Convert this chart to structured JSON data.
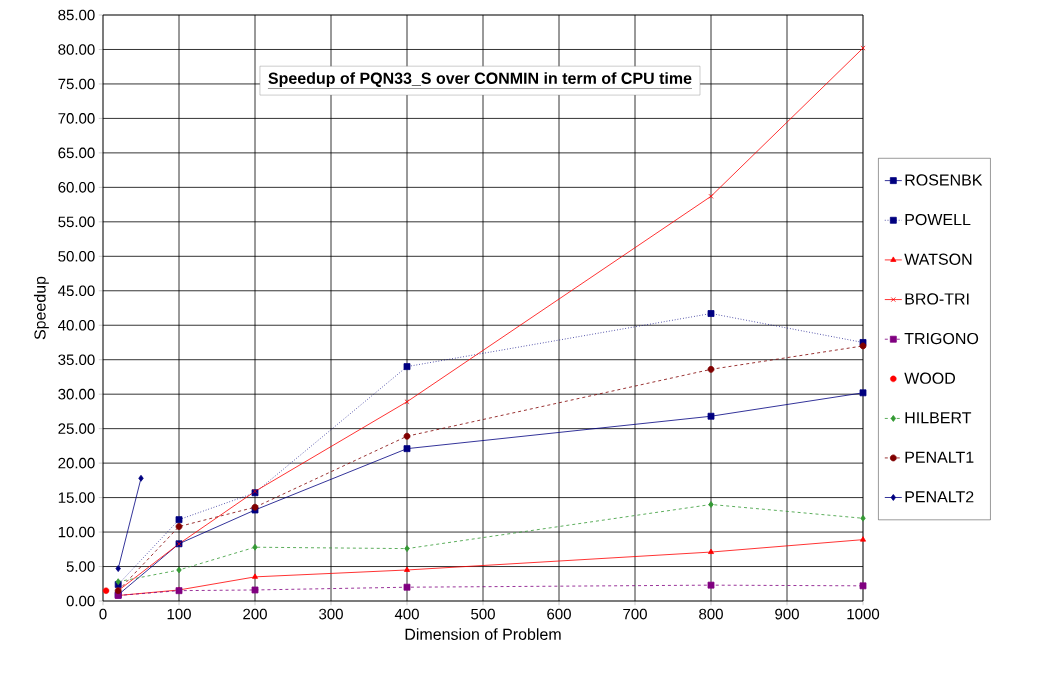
{
  "chart_data": {
    "type": "line",
    "title": "Speedup of PQN33_S over CONMIN in term of CPU time",
    "xlabel": "Dimension of Problem",
    "ylabel": "Speedup",
    "x": [
      20,
      100,
      200,
      400,
      800,
      1000
    ],
    "series": [
      {
        "name": "ROSENBK",
        "color": "#000080",
        "marker": "square",
        "line_style": "solid",
        "values": [
          0.9,
          8.3,
          13.2,
          22.1,
          26.8,
          30.2
        ]
      },
      {
        "name": "POWELL",
        "color": "#000080",
        "marker": "square",
        "line_style": "dotted",
        "values": [
          2.4,
          11.8,
          15.7,
          34.0,
          41.7,
          37.5
        ]
      },
      {
        "name": "WATSON",
        "color": "#ff0000",
        "marker": "triangle",
        "line_style": "solid",
        "values": [
          0.8,
          1.6,
          3.5,
          4.5,
          7.1,
          8.9
        ]
      },
      {
        "name": "BRO-TRI",
        "color": "#ff0000",
        "marker": "cross",
        "line_style": "solid",
        "values": [
          1.5,
          8.3,
          15.9,
          28.9,
          58.7,
          80.2
        ]
      },
      {
        "name": "TRIGONO",
        "color": "#800080",
        "marker": "square",
        "line_style": "dashed",
        "values": [
          0.8,
          1.5,
          1.6,
          2.0,
          2.3,
          2.2
        ]
      },
      {
        "name": "WOOD",
        "type": "scatter",
        "color": "#ff0000",
        "marker": "circle",
        "x": [
          4
        ],
        "values": [
          1.5
        ]
      },
      {
        "name": "HILBERT",
        "color": "#339933",
        "marker": "diamond",
        "line_style": "dashed",
        "values": [
          2.8,
          4.5,
          7.8,
          7.6,
          14.0,
          12.0
        ]
      },
      {
        "name": "PENALT1",
        "color": "#800000",
        "marker": "circle",
        "line_style": "dashed",
        "values": [
          1.5,
          10.8,
          13.6,
          23.9,
          33.6,
          37.0
        ]
      },
      {
        "name": "PENALT2",
        "color": "#000080",
        "marker": "diamond",
        "line_style": "solid",
        "x": [
          20,
          50
        ],
        "values": [
          4.7,
          17.8
        ]
      }
    ],
    "xlim": [
      0,
      1000
    ],
    "ylim": [
      0,
      85
    ],
    "xticks": [
      0,
      100,
      200,
      300,
      400,
      500,
      600,
      700,
      800,
      900,
      1000
    ],
    "yticks": [
      {
        "value": 0,
        "label": "0.00"
      },
      {
        "value": 5,
        "label": "5.00"
      },
      {
        "value": 10,
        "label": "10.00"
      },
      {
        "value": 15,
        "label": "15.00"
      },
      {
        "value": 20,
        "label": "20.00"
      },
      {
        "value": 25,
        "label": "25.00"
      },
      {
        "value": 30,
        "label": "30.00"
      },
      {
        "value": 35,
        "label": "35.00"
      },
      {
        "value": 40,
        "label": "40.00"
      },
      {
        "value": 45,
        "label": "45.00"
      },
      {
        "value": 50,
        "label": "50.00"
      },
      {
        "value": 55,
        "label": "55.00"
      },
      {
        "value": 60,
        "label": "60.00"
      },
      {
        "value": 65,
        "label": "65.00"
      },
      {
        "value": 70,
        "label": "70.00"
      },
      {
        "value": 75,
        "label": "75.00"
      },
      {
        "value": 80,
        "label": "80.00"
      },
      {
        "value": 85,
        "label": "85.00"
      }
    ],
    "grid": true,
    "legend": "right"
  }
}
